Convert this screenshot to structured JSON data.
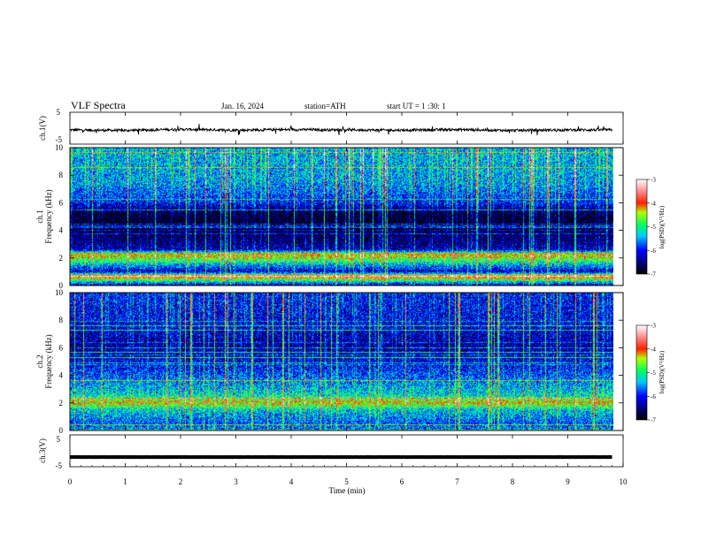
{
  "header": {
    "title": "VLF  Spectra",
    "date": "Jan. 16, 2024",
    "station": "station=ATH",
    "start": "start  UT  =   1 :30: 1"
  },
  "chart_data": [
    {
      "type": "line",
      "panel": "ch1-waveform",
      "ylabel": "ch.1(V)",
      "ylim": [
        -5,
        5
      ],
      "yticks": [
        "5",
        "-5"
      ],
      "xlim": [
        0,
        10
      ],
      "series": [
        {
          "x": [
            0,
            1,
            2,
            3,
            4,
            5,
            6,
            7,
            8,
            9,
            9.8
          ],
          "values": [
            -0.6,
            -0.8,
            -0.4,
            -0.7,
            -0.5,
            -0.6,
            -0.7,
            -0.5,
            -0.8,
            -0.6,
            -0.6
          ]
        }
      ],
      "color": "#000000"
    },
    {
      "type": "heatmap",
      "panel": "ch1-spectrogram",
      "ylabel": "ch.1\nFrequency (kHz)",
      "ylabel_line1": "ch.1",
      "ylabel_line2": "Frequency (kHz)",
      "ylim": [
        0,
        10
      ],
      "yticks": [
        "0",
        "2",
        "4",
        "6",
        "8",
        "10"
      ],
      "xlim": [
        0,
        10
      ],
      "data_end_min": 9.8,
      "band_profile_log_psd": [
        {
          "f": 0.0,
          "v": -6.2
        },
        {
          "f": 0.6,
          "v": -4.0
        },
        {
          "f": 1.0,
          "v": -6.3
        },
        {
          "f": 2.2,
          "v": -4.2
        },
        {
          "f": 2.6,
          "v": -6.3
        },
        {
          "f": 3.5,
          "v": -6.6
        },
        {
          "f": 4.5,
          "v": -6.9
        },
        {
          "f": 5.2,
          "v": -6.8
        },
        {
          "f": 6.0,
          "v": -6.0
        },
        {
          "f": 7.5,
          "v": -5.5
        },
        {
          "f": 10.0,
          "v": -5.4
        }
      ],
      "colorbar": {
        "label": "log(PSD)(V²/Hz)",
        "range": [
          -7,
          -3
        ],
        "ticks": [
          "-3",
          "-4",
          "-5",
          "-6",
          "-7"
        ]
      }
    },
    {
      "type": "heatmap",
      "panel": "ch2-spectrogram",
      "ylabel_line1": "ch.2",
      "ylabel_line2": "Frequency (kHz)",
      "ylim": [
        0,
        10
      ],
      "yticks": [
        "0",
        "2",
        "4",
        "6",
        "8",
        "10"
      ],
      "xlim": [
        0,
        10
      ],
      "data_end_min": 9.8,
      "band_profile_log_psd": [
        {
          "f": 0.0,
          "v": -5.6
        },
        {
          "f": 0.5,
          "v": -5.8
        },
        {
          "f": 1.5,
          "v": -5.3
        },
        {
          "f": 2.0,
          "v": -4.3
        },
        {
          "f": 2.5,
          "v": -5.2
        },
        {
          "f": 3.5,
          "v": -5.6
        },
        {
          "f": 4.5,
          "v": -6.0
        },
        {
          "f": 6.0,
          "v": -6.4
        },
        {
          "f": 8.0,
          "v": -6.1
        },
        {
          "f": 10.0,
          "v": -6.0
        }
      ],
      "colorbar": {
        "label": "log(PSD)(V²/Hz)",
        "range": [
          -7,
          -3
        ],
        "ticks": [
          "-3",
          "-4",
          "-5",
          "-6",
          "-7"
        ]
      }
    },
    {
      "type": "line",
      "panel": "ch3-waveform",
      "ylabel": "ch.3(V)",
      "ylim": [
        -5,
        5
      ],
      "yticks": [
        "5",
        "-5"
      ],
      "xlim": [
        0,
        10
      ],
      "xticks": [
        "0",
        "1",
        "2",
        "3",
        "4",
        "5",
        "6",
        "7",
        "8",
        "9",
        "10"
      ],
      "xlabel": "Time  (min)",
      "series": [
        {
          "x": [
            0,
            9.8
          ],
          "values": [
            -2.2,
            -2.2
          ]
        }
      ],
      "color": "#000000"
    }
  ]
}
